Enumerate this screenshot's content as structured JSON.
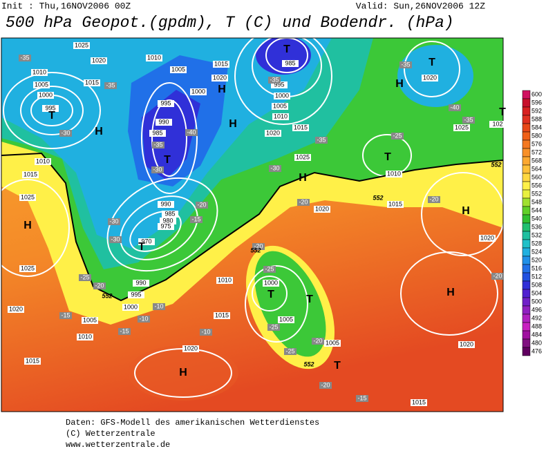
{
  "header": {
    "init": "Init : Thu,16NOV2006 00Z",
    "valid": "Valid: Sun,26NOV2006 12Z",
    "title": "500 hPa Geopot.(gpdm), T (C) und Bodendr. (hPa)"
  },
  "isobar_labels": [
    "1025",
    "1020",
    "1010",
    "1005",
    "1000",
    "995",
    "1015",
    "1010",
    "1005",
    "1015",
    "1020",
    "1000",
    "995",
    "990",
    "985",
    "990",
    "985",
    "980",
    "975",
    "970",
    "990",
    "995",
    "1000",
    "1005",
    "1010",
    "1015",
    "1020",
    "1025",
    "1025",
    "1015",
    "1010",
    "985",
    "995",
    "1000",
    "1005",
    "1010",
    "1015",
    "1020",
    "1025",
    "1020",
    "1015",
    "1010",
    "1020",
    "1025",
    "102",
    "1020",
    "1010",
    "1015",
    "1020",
    "1000",
    "1005",
    "1005",
    "1015",
    "1020"
  ],
  "temperature_labels": [
    "-35",
    "-35",
    "-30",
    "-35",
    "-30",
    "-40",
    "-20",
    "-15",
    "-30",
    "-30",
    "-25",
    "-20",
    "-10",
    "-10",
    "-15",
    "-15",
    "-10",
    "-35",
    "-35",
    "-30",
    "-20",
    "-20",
    "-25",
    "-25",
    "-25",
    "-20",
    "-20",
    "-15",
    "-35",
    "-40",
    "-35",
    "-25",
    "-20",
    "-20"
  ],
  "pressure_centers": [
    "T",
    "T",
    "H",
    "T",
    "H",
    "H",
    "H",
    "T",
    "T",
    "H",
    "H",
    "T",
    "H",
    "T",
    "T",
    "H",
    "T",
    "H",
    "T"
  ],
  "contour_labels": [
    "552",
    "552",
    "552",
    "552",
    "552"
  ],
  "colorbar": {
    "labels": [
      600,
      596,
      592,
      588,
      584,
      580,
      576,
      572,
      568,
      564,
      560,
      556,
      552,
      548,
      544,
      540,
      536,
      532,
      528,
      524,
      520,
      516,
      512,
      508,
      504,
      500,
      496,
      492,
      488,
      484,
      480,
      476
    ],
    "colors": [
      "#d01060",
      "#c8102c",
      "#d82020",
      "#e03020",
      "#e84818",
      "#f06018",
      "#f47820",
      "#f89028",
      "#fca830",
      "#ffc038",
      "#ffd840",
      "#fff048",
      "#e8f040",
      "#a0e030",
      "#60d028",
      "#30c030",
      "#20c070",
      "#20c0a0",
      "#20c0c8",
      "#20b0e0",
      "#2090e8",
      "#2070e8",
      "#2050e0",
      "#3030d8",
      "#5020d0",
      "#7020c8",
      "#9020c0",
      "#b020c0",
      "#c820c0",
      "#a010a0",
      "#801080",
      "#600060"
    ]
  },
  "footer": [
    "Daten: GFS-Modell des amerikanischen Wetterdienstes",
    "(C) Wetterzentrale",
    "www.wetterzentrale.de"
  ]
}
